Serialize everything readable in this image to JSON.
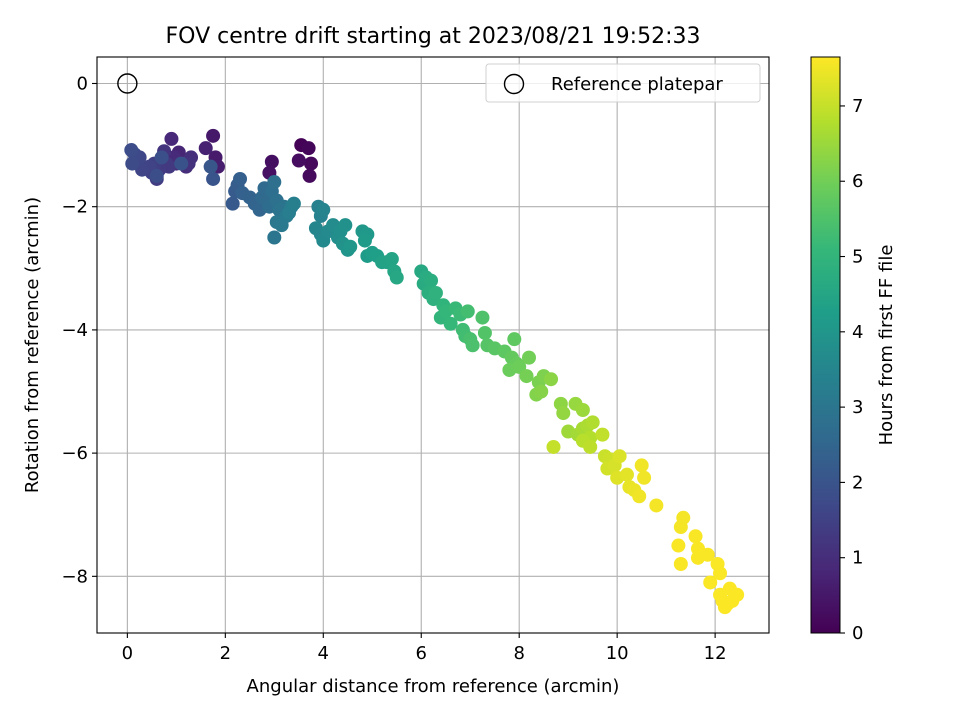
{
  "chart_data": {
    "type": "scatter",
    "title": "FOV centre drift starting at 2023/08/21 19:52:33",
    "xlabel": "Angular distance from reference (arcmin)",
    "ylabel": "Rotation from reference (arcmin)",
    "xlim": [
      -0.62,
      13.1
    ],
    "ylim": [
      -8.92,
      0.43
    ],
    "xticks": [
      0,
      2,
      4,
      6,
      8,
      10,
      12
    ],
    "yticks": [
      0,
      -2,
      -4,
      -6,
      -8
    ],
    "xtick_labels": [
      "0",
      "2",
      "4",
      "6",
      "8",
      "10",
      "12"
    ],
    "ytick_labels": [
      "0",
      "−2",
      "−4",
      "−6",
      "−8"
    ],
    "grid": true,
    "legend": {
      "position": "top-right",
      "entries": [
        "Reference platepar"
      ]
    },
    "colorbar": {
      "label": "Hours from first FF file",
      "range": [
        0,
        7.65
      ],
      "ticks": [
        0,
        1,
        2,
        3,
        4,
        5,
        6,
        7
      ],
      "tick_labels": [
        "0",
        "1",
        "2",
        "3",
        "4",
        "5",
        "6",
        "7"
      ],
      "colormap": "viridis"
    },
    "series": [
      {
        "name": "Reference platepar",
        "marker": "open-circle",
        "points": [
          [
            0,
            0
          ]
        ]
      },
      {
        "marker": "filled-circle",
        "color_by": "hours",
        "points": [
          [
            3.55,
            -1.0,
            0.05
          ],
          [
            3.7,
            -1.05,
            0.1
          ],
          [
            3.75,
            -1.3,
            0.15
          ],
          [
            3.72,
            -1.5,
            0.2
          ],
          [
            3.5,
            -1.25,
            0.25
          ],
          [
            2.95,
            -1.27,
            0.3
          ],
          [
            2.9,
            -1.45,
            0.35
          ],
          [
            1.75,
            -0.85,
            0.5
          ],
          [
            1.8,
            -1.2,
            0.55
          ],
          [
            1.85,
            -1.35,
            0.6
          ],
          [
            1.6,
            -1.05,
            0.7
          ],
          [
            1.05,
            -1.12,
            0.8
          ],
          [
            0.9,
            -0.9,
            0.85
          ],
          [
            0.95,
            -1.2,
            0.9
          ],
          [
            1.0,
            -1.3,
            0.95
          ],
          [
            1.2,
            -1.35,
            1.0
          ],
          [
            1.3,
            -1.2,
            1.05
          ],
          [
            1.25,
            -1.3,
            1.1
          ],
          [
            0.75,
            -1.1,
            1.15
          ],
          [
            0.7,
            -1.25,
            1.2
          ],
          [
            0.8,
            -1.3,
            1.25
          ],
          [
            0.85,
            -1.35,
            1.3
          ],
          [
            0.65,
            -1.4,
            1.35
          ],
          [
            0.6,
            -1.55,
            1.4
          ],
          [
            0.55,
            -1.3,
            1.45
          ],
          [
            0.5,
            -1.45,
            1.5
          ],
          [
            0.45,
            -1.35,
            1.55
          ],
          [
            0.3,
            -1.4,
            1.6
          ],
          [
            0.25,
            -1.2,
            1.65
          ],
          [
            0.15,
            -1.15,
            1.7
          ],
          [
            0.1,
            -1.3,
            1.75
          ],
          [
            0.08,
            -1.08,
            1.8
          ],
          [
            0.6,
            -1.5,
            1.85
          ],
          [
            0.7,
            -1.2,
            1.9
          ],
          [
            1.1,
            -1.3,
            1.95
          ],
          [
            1.75,
            -1.55,
            2.0
          ],
          [
            1.7,
            -1.35,
            2.05
          ],
          [
            2.15,
            -1.95,
            2.15
          ],
          [
            2.2,
            -1.75,
            2.2
          ],
          [
            2.25,
            -1.65,
            2.25
          ],
          [
            2.3,
            -1.55,
            2.3
          ],
          [
            2.35,
            -1.78,
            2.35
          ],
          [
            2.5,
            -1.85,
            2.4
          ],
          [
            2.6,
            -1.95,
            2.45
          ],
          [
            2.7,
            -2.05,
            2.5
          ],
          [
            2.75,
            -1.85,
            2.55
          ],
          [
            2.8,
            -1.7,
            2.6
          ],
          [
            2.85,
            -1.9,
            2.65
          ],
          [
            2.9,
            -2.0,
            2.7
          ],
          [
            2.95,
            -1.75,
            2.75
          ],
          [
            3.0,
            -1.6,
            2.8
          ],
          [
            3.05,
            -1.9,
            2.85
          ],
          [
            3.1,
            -2.05,
            2.9
          ],
          [
            3.2,
            -2.0,
            2.95
          ],
          [
            3.0,
            -2.5,
            3.0
          ],
          [
            3.05,
            -2.25,
            3.05
          ],
          [
            3.15,
            -2.3,
            3.1
          ],
          [
            3.25,
            -2.15,
            3.15
          ],
          [
            3.35,
            -2.0,
            3.2
          ],
          [
            3.3,
            -2.1,
            3.25
          ],
          [
            3.4,
            -1.95,
            3.3
          ],
          [
            3.9,
            -2.0,
            3.35
          ],
          [
            3.95,
            -2.15,
            3.4
          ],
          [
            4.0,
            -2.05,
            3.45
          ],
          [
            3.85,
            -2.35,
            3.5
          ],
          [
            3.95,
            -2.45,
            3.55
          ],
          [
            4.0,
            -2.55,
            3.6
          ],
          [
            4.1,
            -2.4,
            3.65
          ],
          [
            4.2,
            -2.3,
            3.7
          ],
          [
            4.3,
            -2.5,
            3.75
          ],
          [
            4.35,
            -2.4,
            3.8
          ],
          [
            4.45,
            -2.3,
            3.85
          ],
          [
            4.4,
            -2.6,
            3.9
          ],
          [
            4.5,
            -2.7,
            3.95
          ],
          [
            4.55,
            -2.65,
            4.0
          ],
          [
            4.8,
            -2.4,
            4.05
          ],
          [
            4.9,
            -2.45,
            4.1
          ],
          [
            4.85,
            -2.55,
            4.15
          ],
          [
            4.9,
            -2.8,
            4.2
          ],
          [
            5.0,
            -2.75,
            4.25
          ],
          [
            5.1,
            -2.8,
            4.3
          ],
          [
            5.2,
            -2.9,
            4.35
          ],
          [
            5.3,
            -2.9,
            4.4
          ],
          [
            5.4,
            -2.85,
            4.45
          ],
          [
            5.45,
            -3.05,
            4.5
          ],
          [
            5.5,
            -3.15,
            4.55
          ],
          [
            6.0,
            -3.05,
            4.6
          ],
          [
            6.05,
            -3.25,
            4.65
          ],
          [
            6.1,
            -3.15,
            4.7
          ],
          [
            6.2,
            -3.2,
            4.75
          ],
          [
            6.15,
            -3.4,
            4.8
          ],
          [
            6.25,
            -3.5,
            4.85
          ],
          [
            6.3,
            -3.4,
            4.9
          ],
          [
            6.45,
            -3.6,
            4.95
          ],
          [
            6.4,
            -3.8,
            5.0
          ],
          [
            6.5,
            -3.7,
            5.05
          ],
          [
            6.6,
            -3.9,
            5.1
          ],
          [
            6.7,
            -3.65,
            5.15
          ],
          [
            6.8,
            -3.75,
            5.2
          ],
          [
            6.85,
            -4.0,
            5.25
          ],
          [
            6.9,
            -4.1,
            5.3
          ],
          [
            6.95,
            -3.7,
            5.35
          ],
          [
            7.0,
            -4.15,
            5.4
          ],
          [
            7.05,
            -4.25,
            5.45
          ],
          [
            7.25,
            -3.8,
            5.5
          ],
          [
            7.3,
            -4.05,
            5.55
          ],
          [
            7.35,
            -4.25,
            5.6
          ],
          [
            7.5,
            -4.3,
            5.65
          ],
          [
            7.7,
            -4.35,
            5.7
          ],
          [
            7.9,
            -4.15,
            5.75
          ],
          [
            7.85,
            -4.45,
            5.8
          ],
          [
            7.95,
            -4.55,
            5.85
          ],
          [
            7.8,
            -4.65,
            5.9
          ],
          [
            8.0,
            -4.6,
            5.95
          ],
          [
            8.2,
            -4.45,
            6.0
          ],
          [
            8.15,
            -4.75,
            6.05
          ],
          [
            8.4,
            -4.85,
            6.1
          ],
          [
            8.5,
            -4.75,
            6.15
          ],
          [
            8.35,
            -5.05,
            6.2
          ],
          [
            8.45,
            -5.0,
            6.25
          ],
          [
            8.65,
            -4.8,
            6.3
          ],
          [
            8.85,
            -5.2,
            6.35
          ],
          [
            8.9,
            -5.35,
            6.4
          ],
          [
            9.15,
            -5.2,
            6.45
          ],
          [
            9.3,
            -5.3,
            6.5
          ],
          [
            9.0,
            -5.65,
            6.55
          ],
          [
            9.2,
            -5.7,
            6.6
          ],
          [
            9.3,
            -5.6,
            6.65
          ],
          [
            9.4,
            -5.55,
            6.7
          ],
          [
            9.5,
            -5.5,
            6.75
          ],
          [
            9.45,
            -5.75,
            6.8
          ],
          [
            9.3,
            -5.8,
            6.85
          ],
          [
            9.45,
            -5.9,
            6.9
          ],
          [
            9.7,
            -5.7,
            6.95
          ],
          [
            8.7,
            -5.9,
            7.0
          ],
          [
            9.75,
            -6.05,
            7.05
          ],
          [
            9.85,
            -6.1,
            7.1
          ],
          [
            9.8,
            -6.25,
            7.15
          ],
          [
            9.95,
            -6.2,
            7.2
          ],
          [
            10.05,
            -6.05,
            7.25
          ],
          [
            10.0,
            -6.4,
            7.3
          ],
          [
            10.2,
            -6.35,
            7.35
          ],
          [
            10.25,
            -6.55,
            7.4
          ],
          [
            10.35,
            -6.6,
            7.45
          ],
          [
            10.5,
            -6.2,
            7.5
          ],
          [
            10.55,
            -6.4,
            7.5
          ],
          [
            10.45,
            -6.7,
            7.5
          ],
          [
            10.8,
            -6.85,
            7.55
          ],
          [
            11.35,
            -7.05,
            7.55
          ],
          [
            11.3,
            -7.2,
            7.55
          ],
          [
            11.25,
            -7.5,
            7.6
          ],
          [
            11.3,
            -7.8,
            7.6
          ],
          [
            11.6,
            -7.35,
            7.6
          ],
          [
            11.65,
            -7.55,
            7.6
          ],
          [
            11.65,
            -7.7,
            7.6
          ],
          [
            11.85,
            -7.65,
            7.6
          ],
          [
            11.9,
            -8.1,
            7.62
          ],
          [
            12.05,
            -7.8,
            7.62
          ],
          [
            12.1,
            -7.95,
            7.62
          ],
          [
            12.1,
            -8.3,
            7.62
          ],
          [
            12.15,
            -8.4,
            7.63
          ],
          [
            12.2,
            -8.5,
            7.63
          ],
          [
            12.3,
            -8.2,
            7.63
          ],
          [
            12.35,
            -8.4,
            7.63
          ],
          [
            12.45,
            -8.3,
            7.64
          ],
          [
            12.25,
            -8.45,
            7.64
          ]
        ]
      }
    ]
  }
}
